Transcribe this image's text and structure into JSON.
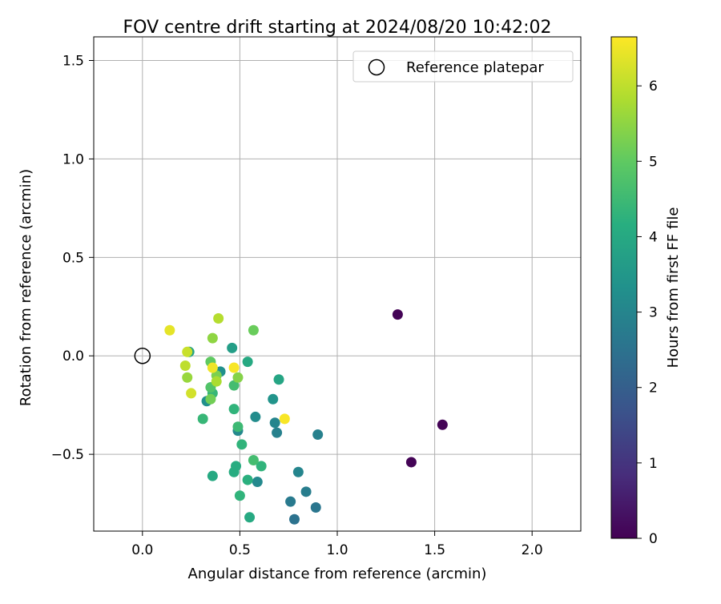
{
  "chart_data": {
    "type": "scatter",
    "title": "FOV centre drift starting at 2024/08/20 10:42:02",
    "xlabel": "Angular distance from reference (arcmin)",
    "ylabel": "Rotation from reference (arcmin)",
    "xlim": [
      -0.25,
      2.25
    ],
    "ylim": [
      -0.89,
      1.62
    ],
    "xticks": [
      0.0,
      0.5,
      1.0,
      1.5,
      2.0
    ],
    "xtick_labels": [
      "0.0",
      "0.5",
      "1.0",
      "1.5",
      "2.0"
    ],
    "yticks": [
      -0.5,
      0.0,
      0.5,
      1.0,
      1.5
    ],
    "ytick_labels": [
      "−0.5",
      "0.0",
      "0.5",
      "1.0",
      "1.5"
    ],
    "grid": true,
    "legend": {
      "location": "upper-right",
      "entries": [
        "Reference platepar"
      ]
    },
    "reference_point": {
      "x": 0.0,
      "y": 0.0,
      "marker": "open-circle"
    },
    "colormap": "viridis",
    "colorbar": {
      "label": "Hours from first FF file",
      "min": 0,
      "max": 6.65,
      "ticks": [
        0,
        1,
        2,
        3,
        4,
        5,
        6
      ],
      "tick_labels": [
        "0",
        "1",
        "2",
        "3",
        "4",
        "5",
        "6"
      ]
    },
    "points": [
      {
        "x": 1.31,
        "y": 0.21,
        "c": 0.05
      },
      {
        "x": 1.54,
        "y": -0.35,
        "c": 0.05
      },
      {
        "x": 1.38,
        "y": -0.54,
        "c": 0.05
      },
      {
        "x": 0.78,
        "y": -0.83,
        "c": 2.5
      },
      {
        "x": 0.89,
        "y": -0.77,
        "c": 2.6
      },
      {
        "x": 0.76,
        "y": -0.74,
        "c": 2.7
      },
      {
        "x": 0.84,
        "y": -0.69,
        "c": 2.8
      },
      {
        "x": 0.8,
        "y": -0.59,
        "c": 3.0
      },
      {
        "x": 0.9,
        "y": -0.4,
        "c": 2.9
      },
      {
        "x": 0.69,
        "y": -0.39,
        "c": 2.9
      },
      {
        "x": 0.68,
        "y": -0.34,
        "c": 3.0
      },
      {
        "x": 0.59,
        "y": -0.64,
        "c": 3.1
      },
      {
        "x": 0.58,
        "y": -0.31,
        "c": 3.2
      },
      {
        "x": 0.49,
        "y": -0.38,
        "c": 3.1
      },
      {
        "x": 0.67,
        "y": -0.22,
        "c": 3.4
      },
      {
        "x": 0.46,
        "y": 0.04,
        "c": 3.7
      },
      {
        "x": 0.33,
        "y": -0.23,
        "c": 3.3
      },
      {
        "x": 0.4,
        "y": -0.08,
        "c": 3.3
      },
      {
        "x": 0.24,
        "y": 0.02,
        "c": 3.8
      },
      {
        "x": 0.7,
        "y": -0.12,
        "c": 3.9
      },
      {
        "x": 0.54,
        "y": -0.03,
        "c": 4.0
      },
      {
        "x": 0.55,
        "y": -0.82,
        "c": 4.0
      },
      {
        "x": 0.36,
        "y": -0.61,
        "c": 4.0
      },
      {
        "x": 0.47,
        "y": -0.59,
        "c": 4.1
      },
      {
        "x": 0.48,
        "y": -0.56,
        "c": 4.1
      },
      {
        "x": 0.54,
        "y": -0.63,
        "c": 4.2
      },
      {
        "x": 0.61,
        "y": -0.56,
        "c": 4.3
      },
      {
        "x": 0.5,
        "y": -0.71,
        "c": 4.3
      },
      {
        "x": 0.51,
        "y": -0.45,
        "c": 4.3
      },
      {
        "x": 0.47,
        "y": -0.27,
        "c": 4.3
      },
      {
        "x": 0.31,
        "y": -0.32,
        "c": 4.4
      },
      {
        "x": 0.36,
        "y": -0.19,
        "c": 4.4
      },
      {
        "x": 0.49,
        "y": -0.36,
        "c": 4.5
      },
      {
        "x": 0.57,
        "y": -0.53,
        "c": 4.6
      },
      {
        "x": 0.47,
        "y": -0.15,
        "c": 4.6
      },
      {
        "x": 0.35,
        "y": -0.16,
        "c": 4.8
      },
      {
        "x": 0.35,
        "y": -0.22,
        "c": 5.2
      },
      {
        "x": 0.35,
        "y": -0.03,
        "c": 5.0
      },
      {
        "x": 0.38,
        "y": -0.1,
        "c": 5.3
      },
      {
        "x": 0.49,
        "y": -0.11,
        "c": 5.4
      },
      {
        "x": 0.57,
        "y": 0.13,
        "c": 5.1
      },
      {
        "x": 0.36,
        "y": 0.09,
        "c": 5.5
      },
      {
        "x": 0.23,
        "y": -0.11,
        "c": 5.6
      },
      {
        "x": 0.38,
        "y": -0.13,
        "c": 5.8
      },
      {
        "x": 0.39,
        "y": 0.19,
        "c": 5.9
      },
      {
        "x": 0.22,
        "y": -0.05,
        "c": 6.0
      },
      {
        "x": 0.23,
        "y": 0.02,
        "c": 6.1
      },
      {
        "x": 0.25,
        "y": -0.19,
        "c": 6.2
      },
      {
        "x": 0.14,
        "y": 0.13,
        "c": 6.4
      },
      {
        "x": 0.36,
        "y": -0.06,
        "c": 6.5
      },
      {
        "x": 0.47,
        "y": -0.06,
        "c": 6.6
      },
      {
        "x": 0.73,
        "y": -0.32,
        "c": 6.6
      }
    ]
  }
}
